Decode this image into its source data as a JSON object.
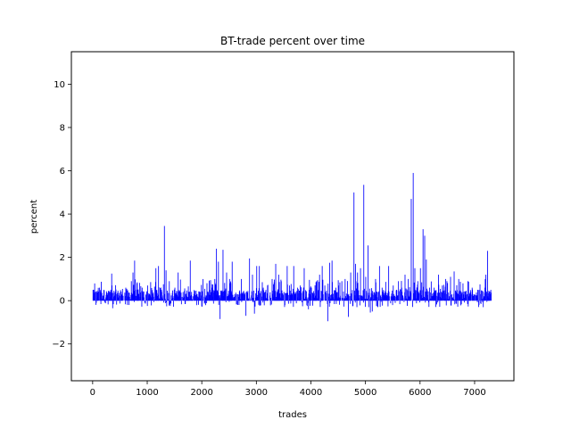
{
  "chart_data": {
    "type": "bar",
    "title": "BT-trade percent over time",
    "xlabel": "trades",
    "ylabel": "percent",
    "xlim": [
      -390,
      7720
    ],
    "ylim": [
      -3.7,
      11.5
    ],
    "x_ticks": [
      0,
      1000,
      2000,
      3000,
      4000,
      5000,
      6000,
      7000
    ],
    "y_ticks": [
      -2,
      0,
      2,
      4,
      6,
      8,
      10
    ],
    "grid": false,
    "bar_color": "#0000ff",
    "n_trades": 7300,
    "anchors": [
      [
        0,
        0.5
      ],
      [
        40,
        0.4
      ],
      [
        120,
        0.6
      ],
      [
        200,
        0.5
      ],
      [
        300,
        0.4
      ],
      [
        340,
        1.25
      ],
      [
        360,
        -0.35
      ],
      [
        440,
        0.3
      ],
      [
        520,
        0.3
      ],
      [
        600,
        0.6
      ],
      [
        660,
        -0.2
      ],
      [
        700,
        0.9
      ],
      [
        730,
        1.3
      ],
      [
        760,
        1.85
      ],
      [
        820,
        0.5
      ],
      [
        900,
        0.6
      ],
      [
        950,
        -0.1
      ],
      [
        1000,
        0.7
      ],
      [
        1080,
        0.4
      ],
      [
        1150,
        1.5
      ],
      [
        1200,
        1.6
      ],
      [
        1250,
        0.5
      ],
      [
        1310,
        3.45
      ],
      [
        1340,
        1.4
      ],
      [
        1400,
        0.9
      ],
      [
        1500,
        0.6
      ],
      [
        1560,
        1.3
      ],
      [
        1650,
        0.4
      ],
      [
        1700,
        0.3
      ],
      [
        1780,
        1.85
      ],
      [
        1850,
        0.3
      ],
      [
        1950,
        0.4
      ],
      [
        2050,
        -0.1
      ],
      [
        2100,
        0.4
      ],
      [
        2180,
        0.6
      ],
      [
        2230,
        1.0
      ],
      [
        2260,
        2.4
      ],
      [
        2300,
        1.8
      ],
      [
        2330,
        -0.85
      ],
      [
        2380,
        2.35
      ],
      [
        2450,
        1.3
      ],
      [
        2500,
        1.0
      ],
      [
        2550,
        1.8
      ],
      [
        2600,
        0.3
      ],
      [
        2660,
        0.3
      ],
      [
        2720,
        1.0
      ],
      [
        2800,
        -0.7
      ],
      [
        2870,
        1.95
      ],
      [
        2920,
        1.2
      ],
      [
        2960,
        -0.6
      ],
      [
        3000,
        1.6
      ],
      [
        3050,
        1.6
      ],
      [
        3120,
        0.6
      ],
      [
        3200,
        0.7
      ],
      [
        3280,
        1.0
      ],
      [
        3350,
        1.7
      ],
      [
        3400,
        1.2
      ],
      [
        3450,
        0.9
      ],
      [
        3500,
        0.4
      ],
      [
        3560,
        1.6
      ],
      [
        3600,
        0.7
      ],
      [
        3680,
        1.6
      ],
      [
        3750,
        0.6
      ],
      [
        3800,
        0.7
      ],
      [
        3870,
        1.5
      ],
      [
        3920,
        -0.2
      ],
      [
        3950,
        -0.4
      ],
      [
        4000,
        0.6
      ],
      [
        4100,
        0.9
      ],
      [
        4150,
        1.2
      ],
      [
        4200,
        1.6
      ],
      [
        4250,
        0.7
      ],
      [
        4300,
        -0.95
      ],
      [
        4340,
        1.75
      ],
      [
        4380,
        1.85
      ],
      [
        4450,
        0.6
      ],
      [
        4500,
        0.7
      ],
      [
        4560,
        0.9
      ],
      [
        4620,
        1.0
      ],
      [
        4680,
        -0.75
      ],
      [
        4720,
        1.3
      ],
      [
        4780,
        5.0
      ],
      [
        4810,
        1.7
      ],
      [
        4850,
        1.3
      ],
      [
        4900,
        1.5
      ],
      [
        4960,
        5.35
      ],
      [
        5000,
        1.1
      ],
      [
        5040,
        2.55
      ],
      [
        5080,
        -0.55
      ],
      [
        5120,
        -0.5
      ],
      [
        5180,
        1.0
      ],
      [
        5250,
        1.6
      ],
      [
        5300,
        0.6
      ],
      [
        5350,
        0.4
      ],
      [
        5420,
        1.6
      ],
      [
        5500,
        0.7
      ],
      [
        5560,
        0.5
      ],
      [
        5600,
        0.9
      ],
      [
        5660,
        0.6
      ],
      [
        5720,
        1.2
      ],
      [
        5780,
        1.0
      ],
      [
        5830,
        4.7
      ],
      [
        5870,
        5.9
      ],
      [
        5900,
        1.5
      ],
      [
        5950,
        0.9
      ],
      [
        6000,
        1.5
      ],
      [
        6050,
        3.3
      ],
      [
        6080,
        3.0
      ],
      [
        6110,
        1.9
      ],
      [
        6170,
        0.6
      ],
      [
        6250,
        0.6
      ],
      [
        6330,
        1.2
      ],
      [
        6400,
        0.7
      ],
      [
        6460,
        1.0
      ],
      [
        6550,
        1.1
      ],
      [
        6620,
        1.35
      ],
      [
        6700,
        1.0
      ],
      [
        6780,
        0.8
      ],
      [
        6850,
        0.3
      ],
      [
        6900,
        0.3
      ],
      [
        6950,
        0.6
      ],
      [
        7050,
        0.5
      ],
      [
        7100,
        0.3
      ],
      [
        7150,
        -0.3
      ],
      [
        7180,
        0.6
      ],
      [
        7200,
        1.2
      ],
      [
        7230,
        2.3
      ],
      [
        7260,
        0.4
      ],
      [
        7290,
        0.5
      ]
    ]
  }
}
